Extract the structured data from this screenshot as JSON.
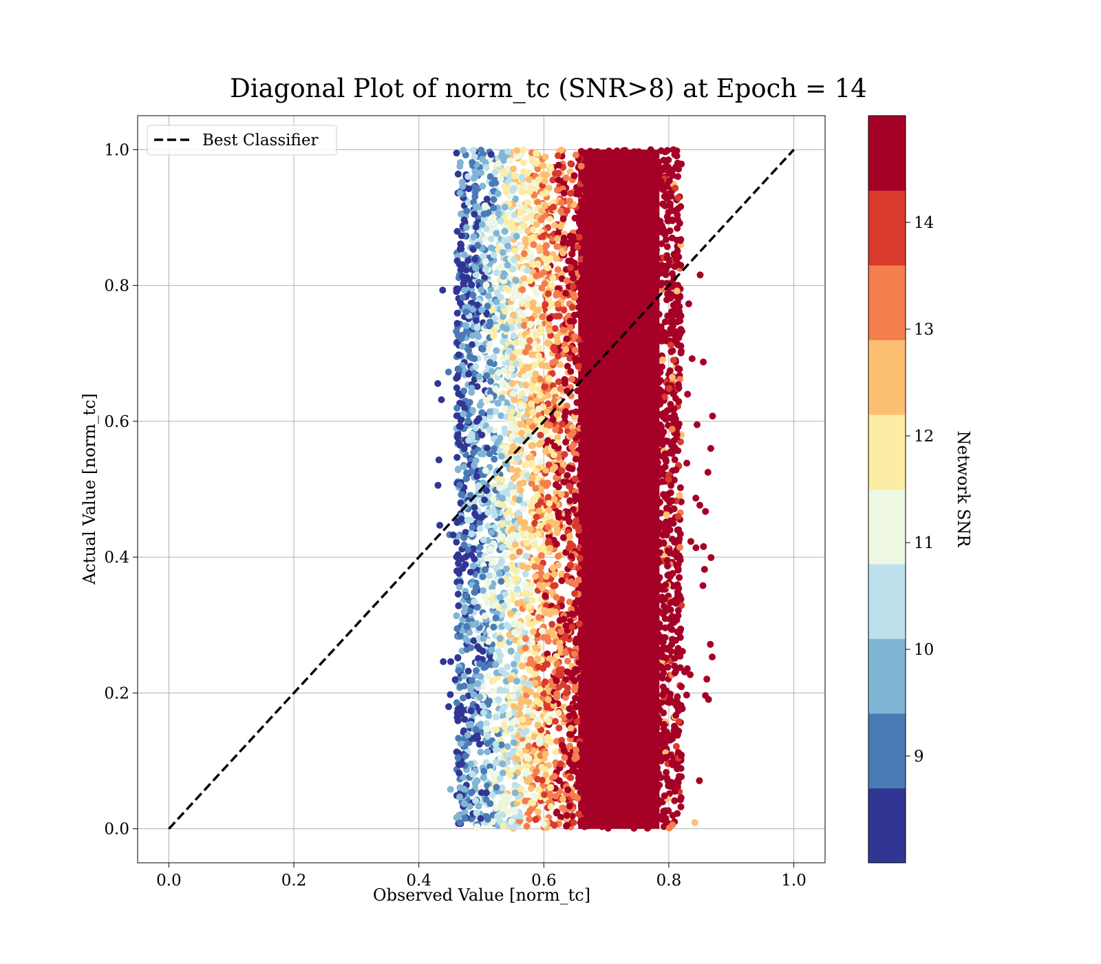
{
  "chart_data": {
    "type": "scatter",
    "title": "Diagonal Plot of norm_tc (SNR>8) at Epoch = 14",
    "xlabel": "Observed Value [norm_tc]",
    "ylabel": "Actual Value [norm_tc]",
    "xlim": [
      -0.05,
      1.05
    ],
    "ylim": [
      -0.05,
      1.05
    ],
    "xticks": [
      0.0,
      0.2,
      0.4,
      0.6,
      0.8,
      1.0
    ],
    "yticks": [
      0.0,
      0.2,
      0.4,
      0.6,
      0.8,
      1.0
    ],
    "xtick_labels": [
      "0.0",
      "0.2",
      "0.4",
      "0.6",
      "0.8",
      "1.0"
    ],
    "ytick_labels": [
      "0.0",
      "0.2",
      "0.4",
      "0.6",
      "0.8",
      "1.0"
    ],
    "grid": true,
    "legend_position": "upper-left",
    "series": [
      {
        "name": "Best Classifier",
        "kind": "dashed-line",
        "color": "#000000",
        "x": [
          0.0,
          1.0
        ],
        "y": [
          0.0,
          1.0
        ]
      }
    ],
    "scatter_extent": {
      "x_range": [
        0.43,
        0.87
      ],
      "y_range": [
        0.0,
        1.0
      ],
      "x_core_range": [
        0.46,
        0.82
      ]
    },
    "snr_color_bands": [
      {
        "snr_min": 8.5,
        "snr_max": 9.5,
        "x_center": 0.47
      },
      {
        "snr_min": 9.5,
        "snr_max": 10.5,
        "x_center": 0.49
      },
      {
        "snr_min": 10.5,
        "snr_max": 11.5,
        "x_center": 0.51
      },
      {
        "snr_min": 11.5,
        "snr_max": 12.5,
        "x_center": 0.54
      },
      {
        "snr_min": 12.5,
        "snr_max": 13.5,
        "x_center": 0.58
      },
      {
        "snr_min": 13.5,
        "snr_max": 14.5,
        "x_center": 0.62
      },
      {
        "snr_min": 14.5,
        "snr_max": 20,
        "x_center": 0.72
      }
    ],
    "colorbar": {
      "label": "Network SNR",
      "range": [
        8.0,
        15.0
      ],
      "ticks": [
        9,
        10,
        11,
        12,
        13,
        14
      ],
      "tick_labels": [
        "9",
        "10",
        "11",
        "12",
        "13",
        "14"
      ],
      "colors": [
        "#313695",
        "#4575b4",
        "#74add1",
        "#abd9e9",
        "#e0f3f8",
        "#fee090",
        "#fdae61",
        "#f46d43",
        "#d73027",
        "#a50026"
      ],
      "band_colors_bottom_to_top": [
        "#313695",
        "#4a7bb7",
        "#80b5d6",
        "#bde1ec",
        "#eef7e1",
        "#fdeca3",
        "#fdbf71",
        "#f47e4d",
        "#d83b2c",
        "#a50026"
      ]
    }
  }
}
